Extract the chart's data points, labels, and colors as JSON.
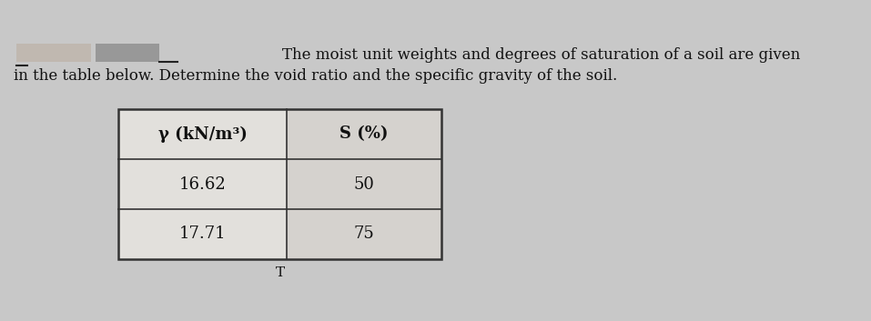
{
  "title_line1": "        The moist unit weights and degrees of saturation of a soil are given",
  "title_line2": "in the table below. Determine the void ratio and the specific gravity of the soil.",
  "col1_header": "γ (kN/m³)",
  "col2_header": "S (%)",
  "row1": [
    "16.62",
    "50"
  ],
  "row2": [
    "17.71",
    "75"
  ],
  "bg_color": "#c8c8c8",
  "table_bg_col1": "#e8e8e8",
  "table_bg_col2": "#d8d8d8",
  "text_color": "#111111",
  "title_fontsize": 12.0,
  "table_fontsize": 13,
  "fig_width": 9.57,
  "fig_height": 3.53,
  "redacted_box1_color": "#b8b0a8",
  "redacted_box2_color": "#a0a0a0"
}
